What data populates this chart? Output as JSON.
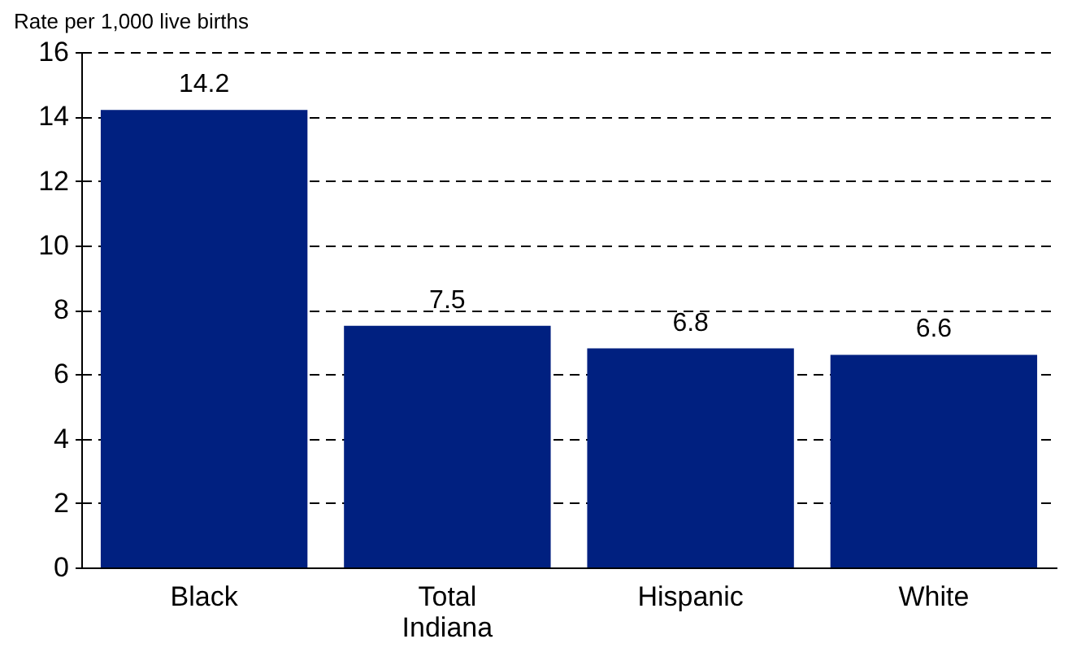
{
  "chart_data": {
    "type": "bar",
    "ylabel": "Rate per 1,000 live births",
    "categories": [
      "Black",
      "Total Indiana",
      "Hispanic",
      "White"
    ],
    "values": [
      14.2,
      7.5,
      6.8,
      6.6
    ],
    "color": "#002080",
    "ylim": [
      0,
      16
    ],
    "yticks": [
      0,
      2,
      4,
      6,
      8,
      10,
      12,
      14,
      16
    ],
    "grid": "y",
    "data_labels": true
  }
}
